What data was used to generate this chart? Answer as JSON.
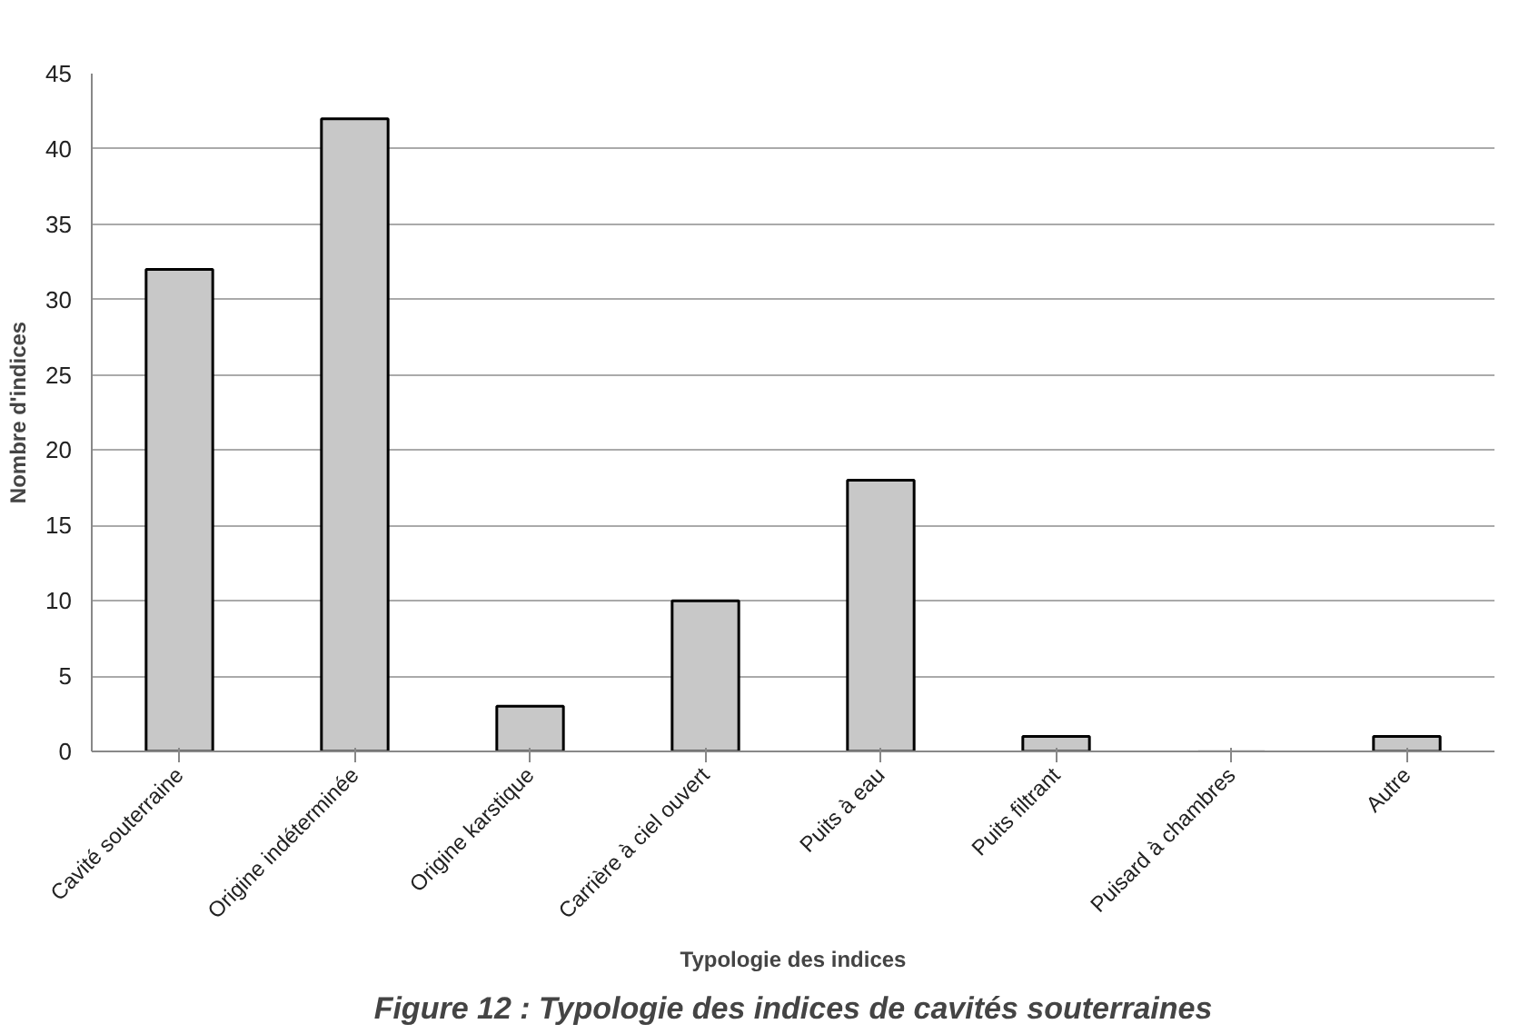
{
  "chart_data": {
    "type": "bar",
    "xlabel": "Typologie des indices",
    "ylabel": "Nombre d'indices",
    "categories": [
      "Cavité souterraine",
      "Origine indéterminée",
      "Origine karstique",
      "Carrière à ciel ouvert",
      "Puits à eau",
      "Puits filtrant",
      "Puisard à chambres",
      "Autre"
    ],
    "values": [
      32,
      42,
      3,
      10,
      18,
      1,
      0,
      1
    ],
    "color": "#c8c8c8",
    "ylim": [
      0,
      45
    ],
    "yticks": [
      0,
      5,
      10,
      15,
      20,
      25,
      30,
      35,
      40,
      45
    ],
    "grid": "y",
    "annotations": [
      "Figure 12 : Typologie des indices de cavités souterraines"
    ]
  }
}
